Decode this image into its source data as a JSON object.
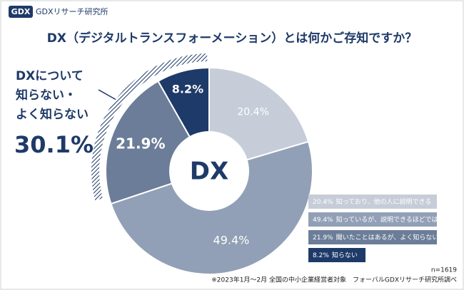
{
  "logo": {
    "mark": "GDX",
    "name": "GDXリサーチ研究所"
  },
  "chart_data": {
    "type": "donut",
    "title": "DX（デジタルトランスフォーメーション）とは何かご存知ですか？",
    "center_label": "DX",
    "series": [
      {
        "name": "知っており、他の人に説明できる",
        "color": "#c6cdd8"
      },
      {
        "name": "知っているが、説明できるほどではない",
        "color": "#91a0b6"
      },
      {
        "name": "聞いたことはあるが、よく知らない",
        "color": "#6b7d98"
      },
      {
        "name": "知らない",
        "color": "#1e3a68"
      }
    ],
    "values": [
      20.4,
      49.4,
      21.9,
      8.2
    ],
    "value_labels": [
      "20.4%",
      "49.4%",
      "21.9%",
      "8.2%"
    ],
    "callout": {
      "lines": [
        "DXについて",
        "知らない・",
        "よく知らない"
      ],
      "value": "30.1%"
    },
    "sample": "n=1619",
    "note": "※2023年1月～2月 全国の中小企業経営者対象　フォーバルGDXリサーチ研究所調べ"
  }
}
